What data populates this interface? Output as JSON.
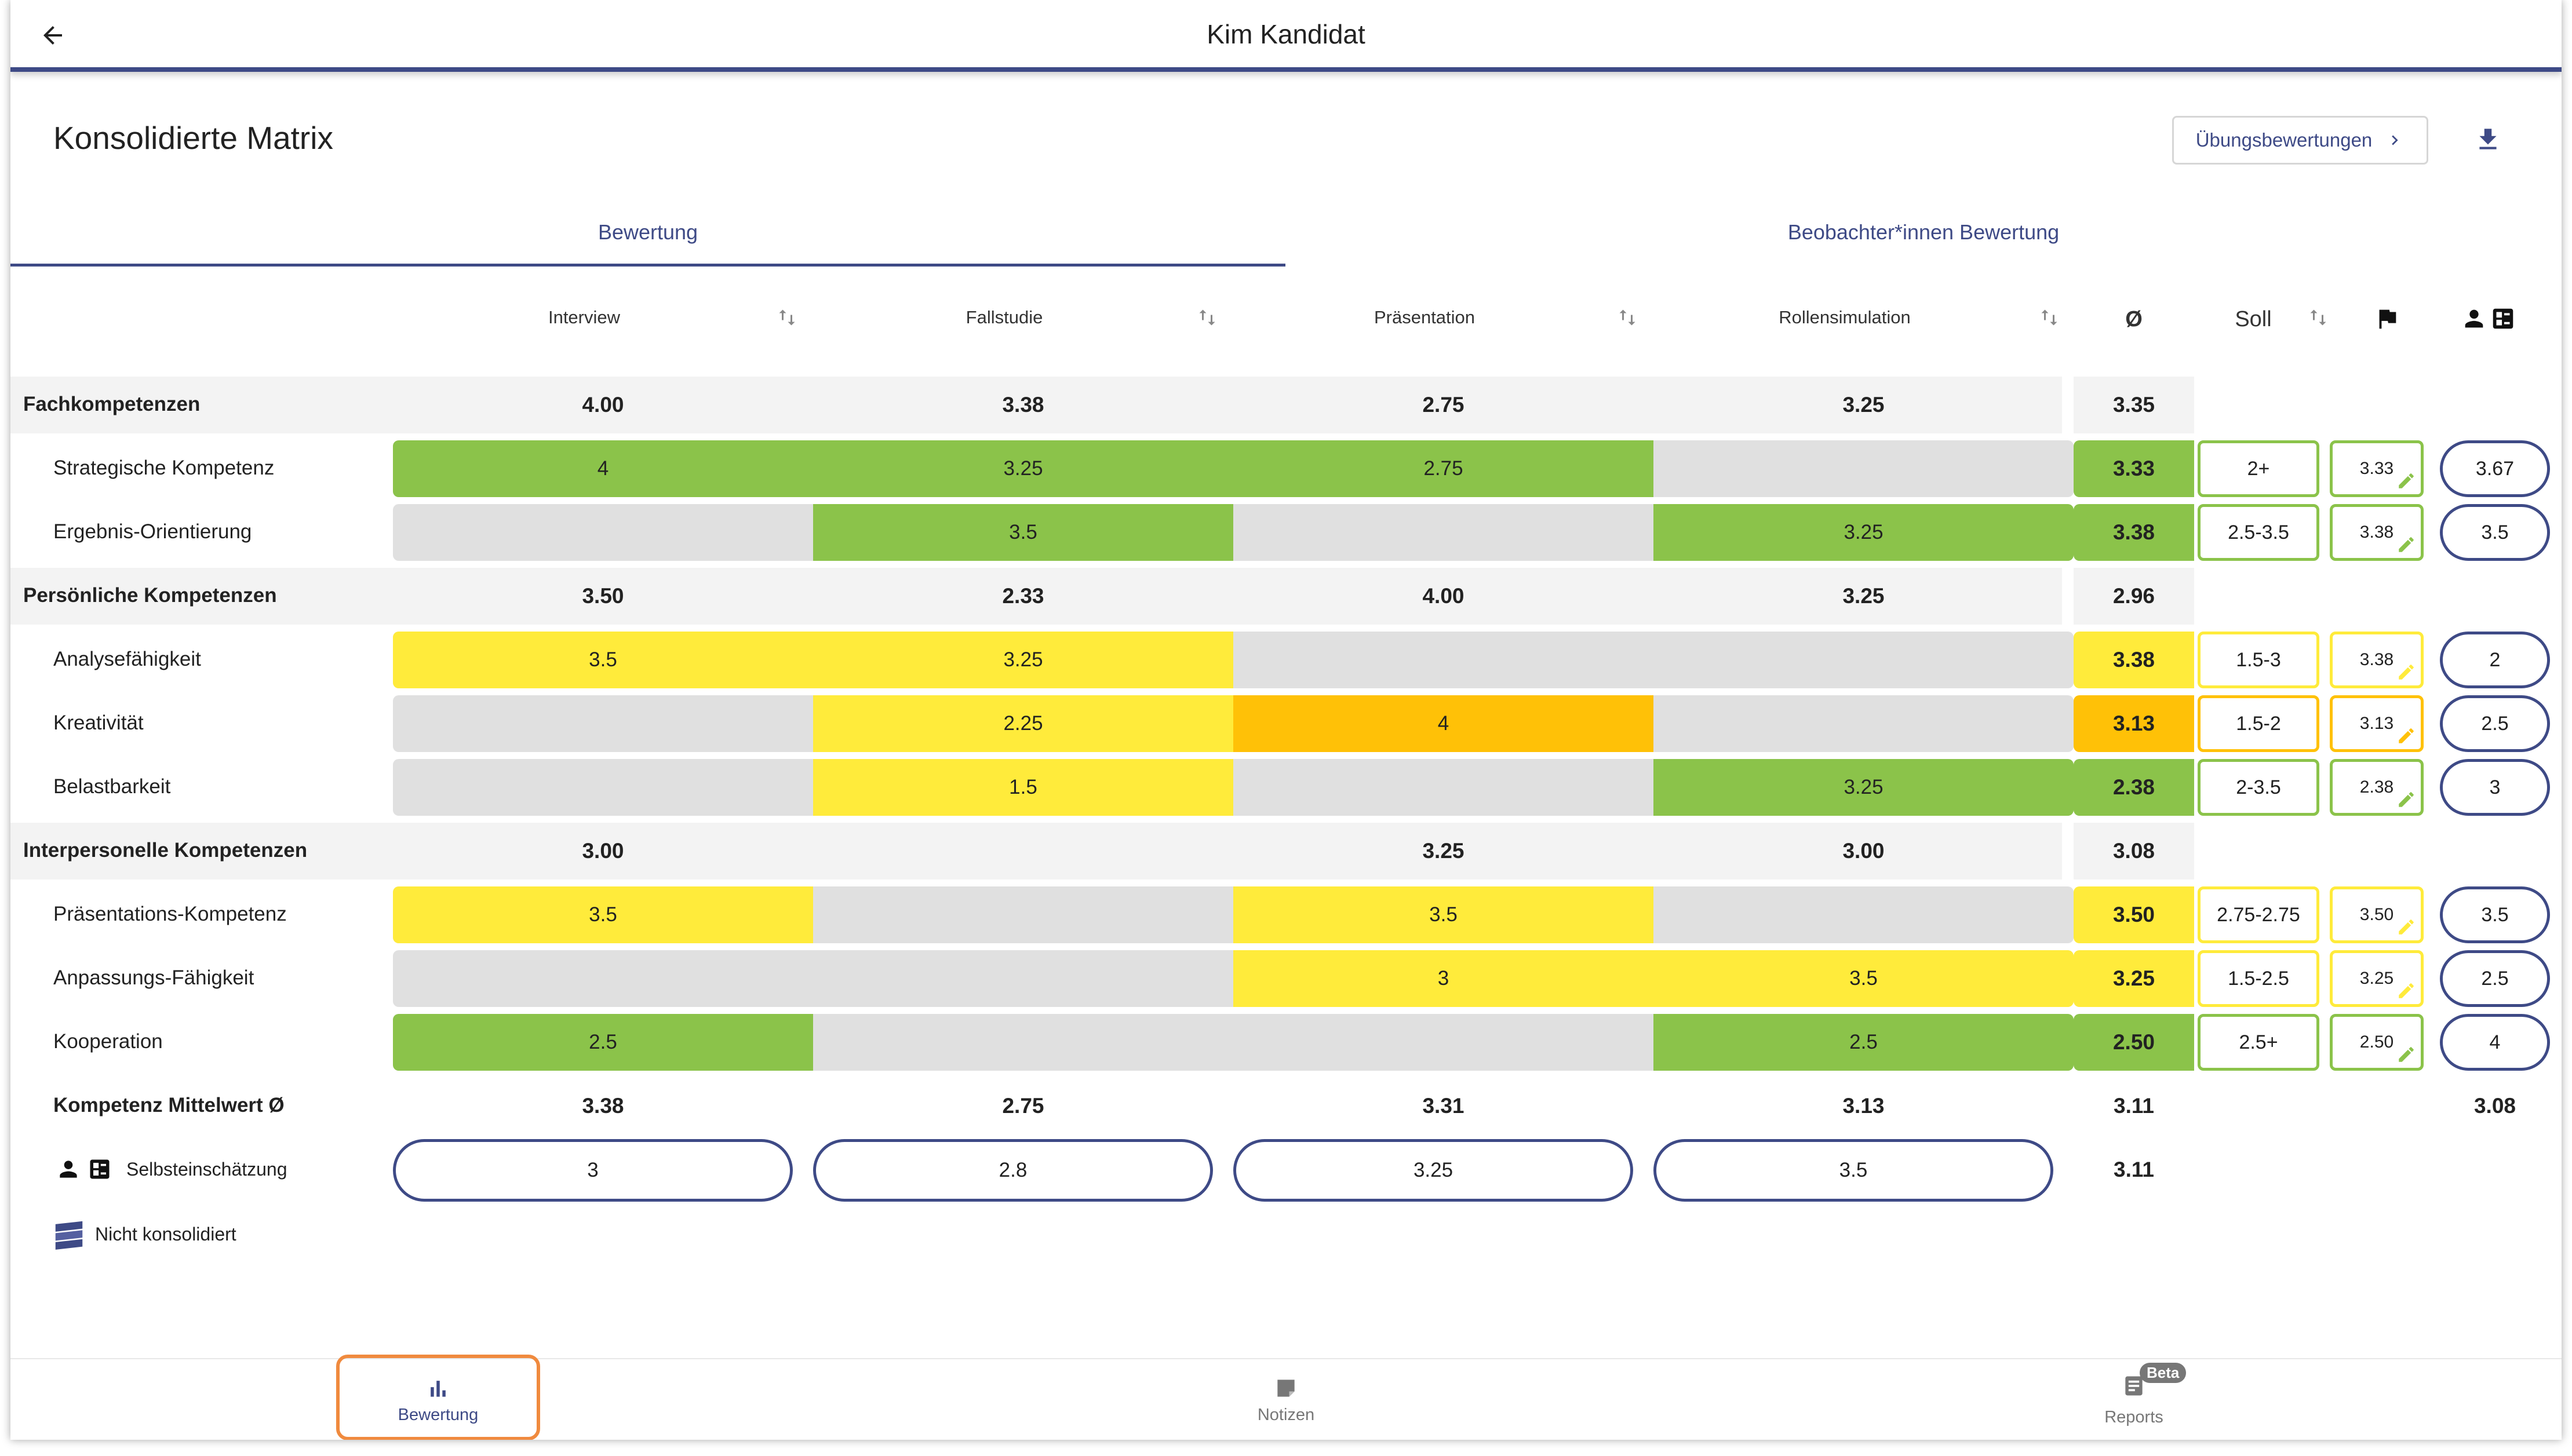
{
  "header": {
    "title": "Kim Kandidat"
  },
  "page": {
    "title": "Konsolidierte Matrix",
    "exercise_button": "Übungsbewertungen"
  },
  "tabs": [
    {
      "label": "Bewertung",
      "active": true
    },
    {
      "label": "Beobachter*innen Bewertung",
      "active": false
    }
  ],
  "columns": {
    "exercises": [
      "Interview",
      "Fallstudie",
      "Präsentation",
      "Rollensimulation"
    ],
    "avg": "Ø",
    "soll": "Soll"
  },
  "colors": {
    "green": "#8bc34a",
    "yellow": "#ffeb3b",
    "orange": "#ffc107",
    "empty": "#e0e0e0",
    "accent": "#3e4a86"
  },
  "categories": [
    {
      "name": "Fachkompetenzen",
      "values": [
        "4.00",
        "3.38",
        "2.75",
        "3.25"
      ],
      "avg": "3.35",
      "items": [
        {
          "name": "Strategische Kompetenz",
          "cells": [
            "4",
            "3.25",
            "2.75",
            ""
          ],
          "colors": [
            "green",
            "green",
            "green",
            "empty"
          ],
          "avg": "3.33",
          "avg_color": "green",
          "soll": "2+",
          "soll_color": "green",
          "flag": "3.33",
          "flag_color": "green",
          "self": "3.67"
        },
        {
          "name": "Ergebnis-Orientierung",
          "cells": [
            "",
            "3.5",
            "",
            "3.25"
          ],
          "colors": [
            "empty",
            "green",
            "empty",
            "green"
          ],
          "avg": "3.38",
          "avg_color": "green",
          "soll": "2.5-3.5",
          "soll_color": "green",
          "flag": "3.38",
          "flag_color": "green",
          "self": "3.5"
        }
      ]
    },
    {
      "name": "Persönliche Kompetenzen",
      "values": [
        "3.50",
        "2.33",
        "4.00",
        "3.25"
      ],
      "avg": "2.96",
      "items": [
        {
          "name": "Analysefähigkeit",
          "cells": [
            "3.5",
            "3.25",
            "",
            ""
          ],
          "colors": [
            "yellow",
            "yellow",
            "empty",
            "empty"
          ],
          "avg": "3.38",
          "avg_color": "yellow",
          "soll": "1.5-3",
          "soll_color": "yellow",
          "flag": "3.38",
          "flag_color": "yellow",
          "self": "2"
        },
        {
          "name": "Kreativität",
          "cells": [
            "",
            "2.25",
            "4",
            ""
          ],
          "colors": [
            "empty",
            "yellow",
            "orange",
            "empty"
          ],
          "avg": "3.13",
          "avg_color": "orange",
          "soll": "1.5-2",
          "soll_color": "orange",
          "flag": "3.13",
          "flag_color": "orange",
          "self": "2.5"
        },
        {
          "name": "Belastbarkeit",
          "cells": [
            "",
            "1.5",
            "",
            "3.25"
          ],
          "colors": [
            "empty",
            "yellow",
            "empty",
            "green"
          ],
          "avg": "2.38",
          "avg_color": "green",
          "soll": "2-3.5",
          "soll_color": "green",
          "flag": "2.38",
          "flag_color": "green",
          "self": "3"
        }
      ]
    },
    {
      "name": "Interpersonelle Kompetenzen",
      "values": [
        "3.00",
        "",
        "3.25",
        "3.00"
      ],
      "avg": "3.08",
      "items": [
        {
          "name": "Präsentations-Kompetenz",
          "cells": [
            "3.5",
            "",
            "3.5",
            ""
          ],
          "colors": [
            "yellow",
            "empty",
            "yellow",
            "empty"
          ],
          "avg": "3.50",
          "avg_color": "yellow",
          "soll": "2.75-2.75",
          "soll_color": "yellow",
          "flag": "3.50",
          "flag_color": "yellow",
          "self": "3.5"
        },
        {
          "name": "Anpassungs-Fähigkeit",
          "cells": [
            "",
            "",
            "3",
            "3.5"
          ],
          "colors": [
            "empty",
            "empty",
            "yellow",
            "yellow"
          ],
          "avg": "3.25",
          "avg_color": "yellow",
          "soll": "1.5-2.5",
          "soll_color": "yellow",
          "flag": "3.25",
          "flag_color": "yellow",
          "self": "2.5"
        },
        {
          "name": "Kooperation",
          "cells": [
            "2.5",
            "",
            "",
            "2.5"
          ],
          "colors": [
            "green",
            "empty",
            "empty",
            "green"
          ],
          "avg": "2.50",
          "avg_color": "green",
          "soll": "2.5+",
          "soll_color": "green",
          "flag": "2.50",
          "flag_color": "green",
          "self": "4"
        }
      ]
    }
  ],
  "mean_row": {
    "label": "Kompetenz Mittelwert Ø",
    "values": [
      "3.38",
      "2.75",
      "3.31",
      "3.13"
    ],
    "avg": "3.11",
    "self": "3.08"
  },
  "self_row": {
    "label": "Selbsteinschätzung",
    "values": [
      "3",
      "2.8",
      "3.25",
      "3.5"
    ],
    "avg": "3.11"
  },
  "legend": {
    "not_consolidated": "Nicht konsolidiert"
  },
  "nav": [
    {
      "label": "Bewertung",
      "icon": "bar-chart-icon",
      "active": true
    },
    {
      "label": "Notizen",
      "icon": "note-icon",
      "active": false
    },
    {
      "label": "Reports",
      "icon": "reports-icon",
      "active": false,
      "badge": "Beta"
    }
  ]
}
